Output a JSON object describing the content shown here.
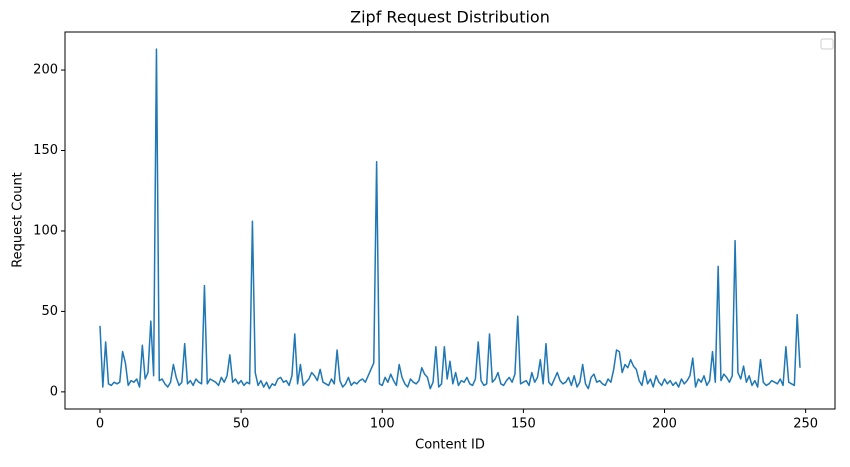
{
  "chart_data": {
    "type": "line",
    "title": "Zipf Request Distribution",
    "x_label": "Content ID",
    "y_label": "Request Count",
    "x": [
      0,
      1,
      2,
      3,
      4,
      5,
      6,
      7,
      8,
      9,
      10,
      11,
      12,
      13,
      14,
      15,
      16,
      17,
      18,
      19,
      20,
      21,
      22,
      23,
      24,
      25,
      26,
      27,
      28,
      29,
      30,
      31,
      32,
      33,
      34,
      35,
      36,
      37,
      38,
      39,
      40,
      41,
      42,
      43,
      44,
      45,
      46,
      47,
      48,
      49,
      50,
      51,
      52,
      53,
      54,
      55,
      56,
      57,
      58,
      59,
      60,
      61,
      62,
      63,
      64,
      65,
      66,
      67,
      68,
      69,
      70,
      71,
      72,
      73,
      74,
      75,
      76,
      77,
      78,
      79,
      80,
      81,
      82,
      83,
      84,
      85,
      86,
      87,
      88,
      89,
      90,
      91,
      92,
      93,
      94,
      95,
      96,
      97,
      98,
      99,
      100,
      101,
      102,
      103,
      104,
      105,
      106,
      107,
      108,
      109,
      110,
      111,
      112,
      113,
      114,
      115,
      116,
      117,
      118,
      119,
      120,
      121,
      122,
      123,
      124,
      125,
      126,
      127,
      128,
      129,
      130,
      131,
      132,
      133,
      134,
      135,
      136,
      137,
      138,
      139,
      140,
      141,
      142,
      143,
      144,
      145,
      146,
      147,
      148,
      149,
      150,
      151,
      152,
      153,
      154,
      155,
      156,
      157,
      158,
      159,
      160,
      161,
      162,
      163,
      164,
      165,
      166,
      167,
      168,
      169,
      170,
      171,
      172,
      173,
      174,
      175,
      176,
      177,
      178,
      179,
      180,
      181,
      182,
      183,
      184,
      185,
      186,
      187,
      188,
      189,
      190,
      191,
      192,
      193,
      194,
      195,
      196,
      197,
      198,
      199,
      200,
      201,
      202,
      203,
      204,
      205,
      206,
      207,
      208,
      209,
      210,
      211,
      212,
      213,
      214,
      215,
      216,
      217,
      218,
      219,
      220,
      221,
      222,
      223,
      224,
      225,
      226,
      227,
      228,
      229,
      230,
      231,
      232,
      233,
      234,
      235,
      236,
      237,
      238,
      239,
      240,
      241,
      242,
      243,
      244,
      245,
      246,
      247,
      248
    ],
    "series": [
      {
        "color": "#1f77b4",
        "values": [
          41,
          3,
          31,
          5,
          4,
          6,
          5,
          6,
          25,
          18,
          4,
          7,
          6,
          8,
          3,
          29,
          8,
          12,
          44,
          10,
          213,
          7,
          8,
          5,
          3,
          6,
          17,
          9,
          4,
          6,
          30,
          5,
          7,
          4,
          8,
          6,
          5,
          66,
          5,
          8,
          7,
          6,
          4,
          9,
          6,
          10,
          23,
          6,
          8,
          5,
          7,
          4,
          6,
          5,
          106,
          12,
          4,
          7,
          3,
          6,
          2,
          5,
          4,
          8,
          9,
          6,
          7,
          4,
          10,
          36,
          5,
          17,
          4,
          6,
          8,
          12,
          10,
          7,
          14,
          6,
          5,
          4,
          8,
          5,
          26,
          7,
          3,
          5,
          9,
          4,
          6,
          5,
          7,
          8,
          6,
          10,
          14,
          18,
          143,
          5,
          4,
          9,
          6,
          11,
          7,
          4,
          17,
          9,
          5,
          3,
          8,
          6,
          5,
          7,
          15,
          11,
          9,
          2,
          6,
          28,
          3,
          5,
          28,
          8,
          19,
          5,
          12,
          4,
          7,
          6,
          9,
          5,
          4,
          8,
          31,
          7,
          4,
          5,
          36,
          6,
          8,
          12,
          5,
          4,
          7,
          9,
          6,
          11,
          47,
          5,
          6,
          7,
          4,
          12,
          6,
          9,
          20,
          5,
          30,
          6,
          4,
          8,
          12,
          7,
          5,
          6,
          9,
          4,
          10,
          3,
          6,
          17,
          5,
          2,
          9,
          11,
          6,
          7,
          5,
          4,
          8,
          6,
          14,
          26,
          25,
          12,
          17,
          15,
          20,
          16,
          14,
          7,
          4,
          13,
          5,
          8,
          3,
          10,
          6,
          4,
          8,
          5,
          7,
          4,
          6,
          3,
          8,
          5,
          7,
          10,
          21,
          3,
          8,
          6,
          10,
          4,
          7,
          25,
          6,
          78,
          7,
          11,
          9,
          6,
          10,
          94,
          12,
          8,
          16,
          6,
          10,
          4,
          7,
          3,
          20,
          6,
          4,
          5,
          7,
          6,
          5,
          8,
          4,
          28,
          6,
          5,
          4,
          48,
          15
        ]
      }
    ],
    "xlim": [
      -12.4,
      260.4
    ],
    "ylim": [
      -10.65,
      223.65
    ],
    "xticks": [
      0,
      50,
      100,
      150,
      200,
      250
    ],
    "yticks": [
      0,
      50,
      100,
      150,
      200
    ]
  }
}
